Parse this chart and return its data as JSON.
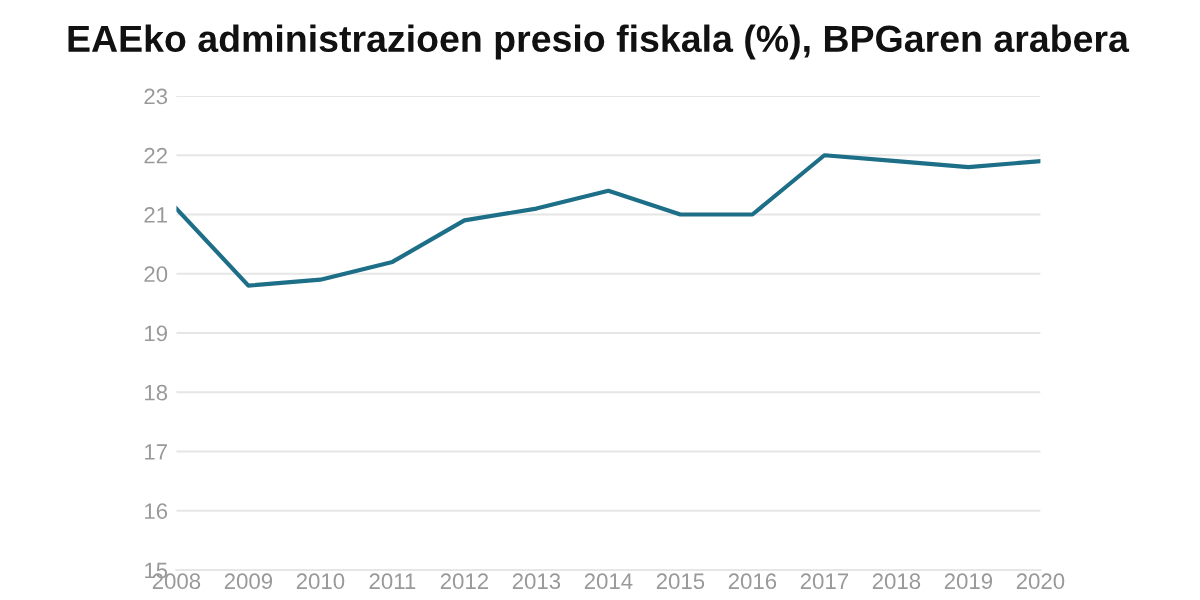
{
  "chart_data": {
    "type": "line",
    "title": "EAEko administrazioen presio fiskala (%), BPGaren arabera",
    "x": [
      2008,
      2009,
      2010,
      2011,
      2012,
      2013,
      2014,
      2015,
      2016,
      2017,
      2018,
      2019,
      2020
    ],
    "series": [
      {
        "color": "#1d6e87",
        "values": [
          21.1,
          19.8,
          19.9,
          20.2,
          20.9,
          21.1,
          21.4,
          21.0,
          21.0,
          22.0,
          21.9,
          21.8,
          21.9
        ]
      }
    ],
    "xlim": [
      2008,
      2020
    ],
    "xticks": [
      2008,
      2009,
      2010,
      2011,
      2012,
      2013,
      2014,
      2015,
      2016,
      2017,
      2018,
      2019,
      2020
    ],
    "ylim": [
      15,
      23
    ],
    "yticks": [
      15,
      16,
      17,
      18,
      19,
      20,
      21,
      22,
      23
    ],
    "grid": "y",
    "line_style": "solid"
  }
}
